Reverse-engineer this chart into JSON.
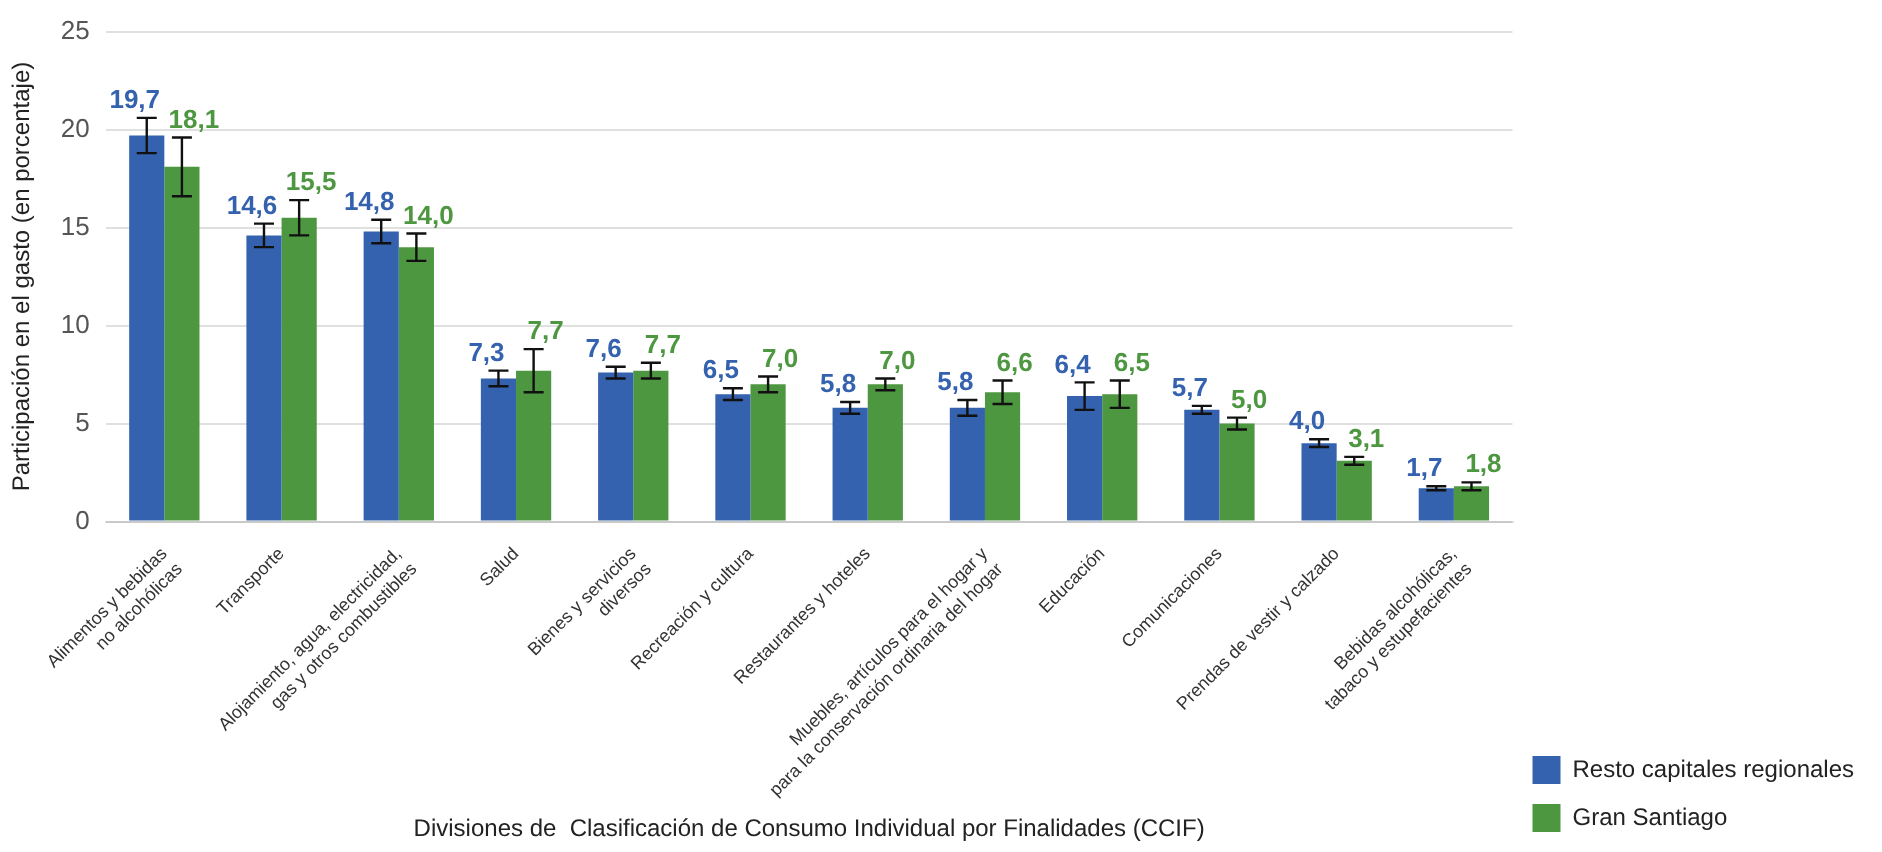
{
  "chart_data": {
    "type": "bar",
    "xlabel": "Divisiones de  Clasificación de Consumo Individual por Finalidades (CCIF)",
    "ylabel": "Participación en el gasto (en porcentaje)",
    "categories": [
      "Alimentos y bebidas\nno alcohólicas",
      "Transporte",
      "Alojamiento, agua, electricidad,\ngas y otros combustibles",
      "Salud",
      "Bienes y servicios\ndiversos",
      "Recreación y cultura",
      "Restaurantes y hoteles",
      "Muebles, artículos para el hogar y\npara la conservación ordinaria del hogar",
      "Educación",
      "Comunicaciones",
      "Prendas de vestir y calzado",
      "Bebidas alcohólicas,\ntabaco y estupefacientes"
    ],
    "series": [
      {
        "name": "Resto capitales regionales",
        "color": "#3562ae",
        "values": [
          19.7,
          14.6,
          14.8,
          7.3,
          7.6,
          6.5,
          5.8,
          5.8,
          6.4,
          5.7,
          4.0,
          1.7
        ],
        "value_labels": [
          "19,7",
          "14,6",
          "14,8",
          "7,3",
          "7,6",
          "6,5",
          "5,8",
          "5,8",
          "6,4",
          "5,7",
          "4,0",
          "1,7"
        ],
        "errors": [
          0.9,
          0.6,
          0.6,
          0.4,
          0.3,
          0.3,
          0.3,
          0.4,
          0.7,
          0.2,
          0.2,
          0.1
        ]
      },
      {
        "name": "Gran Santiago",
        "color": "#4e9741",
        "values": [
          18.1,
          15.5,
          14.0,
          7.7,
          7.7,
          7.0,
          7.0,
          6.6,
          6.5,
          5.0,
          3.1,
          1.8
        ],
        "value_labels": [
          "18,1",
          "15,5",
          "14,0",
          "7,7",
          "7,7",
          "7,0",
          "7,0",
          "6,6",
          "6,5",
          "5,0",
          "3,1",
          "1,8"
        ],
        "errors": [
          1.5,
          0.9,
          0.7,
          1.1,
          0.4,
          0.4,
          0.3,
          0.6,
          0.7,
          0.3,
          0.2,
          0.2
        ]
      }
    ],
    "ylim": [
      0,
      25
    ],
    "yticks": [
      0,
      5,
      10,
      15,
      20,
      25
    ],
    "grid": "y",
    "legend": "bottom right"
  }
}
